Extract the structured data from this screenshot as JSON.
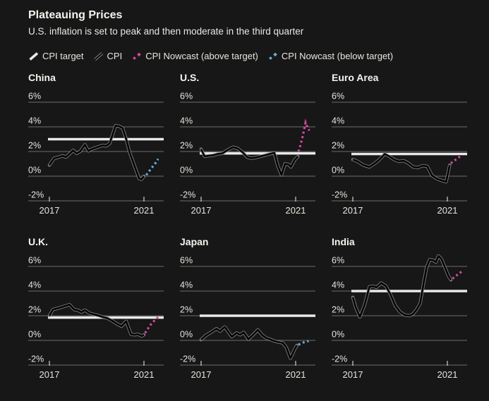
{
  "header": {
    "title": "Plateauing Prices",
    "subtitle": "U.S. inflation is set to peak and then moderate in the third quarter"
  },
  "legend": {
    "items": [
      {
        "icon": "cpi-target-line-icon",
        "label": "CPI target"
      },
      {
        "icon": "cpi-line-icon",
        "label": "CPI"
      },
      {
        "icon": "nowcast-above-icon",
        "label": "CPI Nowcast (above target)"
      },
      {
        "icon": "nowcast-below-icon",
        "label": "CPI Nowcast (below target)"
      }
    ]
  },
  "colors": {
    "background": "#171717",
    "title_text": "#f5f3ee",
    "axis_text": "#e7e4dd",
    "gridline": "#6e6e6e",
    "tick": "#cfcfcf",
    "target_line": "#e9e9e9",
    "cpi_core": "#000000",
    "cpi_halo": "#8f8f8f",
    "nowcast_above": "#d34a9d",
    "nowcast_below": "#63b0d8"
  },
  "chart_data": {
    "type": "line",
    "title": "Plateauing Prices",
    "subtitle": "U.S. inflation is set to peak and then moderate in the third quarter",
    "grid": "horizontal-only",
    "legend_position": "top",
    "y_axis": {
      "tick_labels": [
        "6%",
        "4%",
        "2%",
        "0%",
        "-2%"
      ],
      "tick_values": [
        6,
        4,
        2,
        0,
        -2
      ],
      "units": "percent",
      "range": [
        -2.8,
        7.4
      ]
    },
    "x_axis": {
      "tick_labels": [
        "2017",
        "2021"
      ],
      "tick_values": [
        2017,
        2021
      ],
      "range": [
        2016.1,
        2021.8
      ]
    },
    "charts": [
      {
        "title": "China",
        "target": 3.0,
        "nowcast_direction": "below",
        "cpi": [
          [
            2017.0,
            0.9
          ],
          [
            2017.2,
            1.45
          ],
          [
            2017.4,
            1.55
          ],
          [
            2017.55,
            1.65
          ],
          [
            2017.7,
            1.55
          ],
          [
            2017.85,
            1.8
          ],
          [
            2018.0,
            2.1
          ],
          [
            2018.15,
            1.85
          ],
          [
            2018.3,
            2.0
          ],
          [
            2018.5,
            2.55
          ],
          [
            2018.65,
            2.05
          ],
          [
            2018.8,
            2.2
          ],
          [
            2018.95,
            2.3
          ],
          [
            2019.1,
            2.4
          ],
          [
            2019.25,
            2.5
          ],
          [
            2019.4,
            2.45
          ],
          [
            2019.55,
            2.65
          ],
          [
            2019.8,
            4.1
          ],
          [
            2019.95,
            4.05
          ],
          [
            2020.1,
            3.9
          ],
          [
            2020.25,
            3.0
          ],
          [
            2020.4,
            1.9
          ],
          [
            2020.55,
            1.1
          ],
          [
            2020.7,
            0.3
          ],
          [
            2020.8,
            -0.2
          ],
          [
            2020.9,
            -0.25
          ],
          [
            2021.0,
            0.0
          ]
        ],
        "nowcast": [
          [
            2021.1,
            0.1
          ],
          [
            2021.2,
            0.35
          ],
          [
            2021.3,
            0.6
          ],
          [
            2021.4,
            0.85
          ],
          [
            2021.5,
            1.1
          ],
          [
            2021.6,
            1.4
          ]
        ]
      },
      {
        "title": "U.S.",
        "target": 1.85,
        "nowcast_direction": "above",
        "cpi": [
          [
            2017.0,
            2.2
          ],
          [
            2017.15,
            1.6
          ],
          [
            2017.3,
            1.65
          ],
          [
            2017.5,
            1.7
          ],
          [
            2017.7,
            1.8
          ],
          [
            2017.9,
            1.85
          ],
          [
            2018.1,
            2.1
          ],
          [
            2018.35,
            2.35
          ],
          [
            2018.55,
            2.25
          ],
          [
            2018.75,
            1.95
          ],
          [
            2018.95,
            1.55
          ],
          [
            2019.1,
            1.45
          ],
          [
            2019.3,
            1.5
          ],
          [
            2019.5,
            1.6
          ],
          [
            2019.7,
            1.7
          ],
          [
            2019.9,
            1.8
          ],
          [
            2020.1,
            1.9
          ],
          [
            2020.25,
            0.8
          ],
          [
            2020.4,
            0.1
          ],
          [
            2020.55,
            1.0
          ],
          [
            2020.7,
            0.95
          ],
          [
            2020.8,
            0.75
          ],
          [
            2020.95,
            1.3
          ],
          [
            2021.1,
            1.6
          ]
        ],
        "nowcast": [
          [
            2021.12,
            2.0
          ],
          [
            2021.2,
            2.5
          ],
          [
            2021.28,
            3.1
          ],
          [
            2021.35,
            3.7
          ],
          [
            2021.42,
            4.35
          ],
          [
            2021.5,
            3.95
          ],
          [
            2021.58,
            3.7
          ]
        ]
      },
      {
        "title": "Euro Area",
        "target": 1.8,
        "nowcast_direction": "above",
        "cpi": [
          [
            2017.0,
            1.35
          ],
          [
            2017.2,
            1.2
          ],
          [
            2017.45,
            0.9
          ],
          [
            2017.7,
            0.75
          ],
          [
            2017.9,
            1.0
          ],
          [
            2018.1,
            1.3
          ],
          [
            2018.35,
            1.8
          ],
          [
            2018.55,
            1.6
          ],
          [
            2018.75,
            1.35
          ],
          [
            2018.95,
            1.2
          ],
          [
            2019.15,
            1.25
          ],
          [
            2019.35,
            1.05
          ],
          [
            2019.55,
            0.75
          ],
          [
            2019.75,
            0.7
          ],
          [
            2019.95,
            0.85
          ],
          [
            2020.15,
            0.8
          ],
          [
            2020.35,
            0.05
          ],
          [
            2020.55,
            -0.2
          ],
          [
            2020.75,
            -0.35
          ],
          [
            2020.95,
            -0.45
          ],
          [
            2021.1,
            0.9
          ]
        ],
        "nowcast": [
          [
            2021.15,
            1.05
          ],
          [
            2021.25,
            1.2
          ],
          [
            2021.4,
            1.4
          ],
          [
            2021.5,
            1.55
          ],
          [
            2021.6,
            1.7
          ]
        ]
      },
      {
        "title": "U.K.",
        "target": 1.85,
        "nowcast_direction": "above",
        "cpi": [
          [
            2017.0,
            2.0
          ],
          [
            2017.15,
            2.5
          ],
          [
            2017.35,
            2.6
          ],
          [
            2017.6,
            2.75
          ],
          [
            2017.85,
            2.9
          ],
          [
            2018.05,
            2.5
          ],
          [
            2018.2,
            2.45
          ],
          [
            2018.35,
            2.3
          ],
          [
            2018.5,
            2.45
          ],
          [
            2018.7,
            2.2
          ],
          [
            2018.9,
            2.1
          ],
          [
            2019.1,
            2.0
          ],
          [
            2019.25,
            1.9
          ],
          [
            2019.45,
            1.8
          ],
          [
            2019.65,
            1.6
          ],
          [
            2019.85,
            1.35
          ],
          [
            2020.05,
            1.15
          ],
          [
            2020.25,
            1.55
          ],
          [
            2020.45,
            0.5
          ],
          [
            2020.6,
            0.45
          ],
          [
            2020.75,
            0.5
          ],
          [
            2020.9,
            0.35
          ],
          [
            2021.0,
            0.45
          ]
        ],
        "nowcast": [
          [
            2021.05,
            0.6
          ],
          [
            2021.15,
            0.9
          ],
          [
            2021.25,
            1.2
          ],
          [
            2021.38,
            1.5
          ],
          [
            2021.5,
            1.7
          ],
          [
            2021.6,
            1.9
          ]
        ]
      },
      {
        "title": "Japan",
        "target": 2.0,
        "nowcast_direction": "below",
        "cpi": [
          [
            2017.0,
            0.05
          ],
          [
            2017.2,
            0.4
          ],
          [
            2017.45,
            0.7
          ],
          [
            2017.65,
            0.95
          ],
          [
            2017.8,
            0.75
          ],
          [
            2018.0,
            1.1
          ],
          [
            2018.15,
            0.7
          ],
          [
            2018.3,
            0.3
          ],
          [
            2018.5,
            0.6
          ],
          [
            2018.65,
            0.45
          ],
          [
            2018.8,
            0.65
          ],
          [
            2019.0,
            0.1
          ],
          [
            2019.2,
            0.45
          ],
          [
            2019.4,
            0.85
          ],
          [
            2019.6,
            0.4
          ],
          [
            2019.75,
            0.2
          ],
          [
            2019.9,
            0.1
          ],
          [
            2020.1,
            -0.05
          ],
          [
            2020.3,
            -0.15
          ],
          [
            2020.45,
            -0.2
          ],
          [
            2020.6,
            -0.55
          ],
          [
            2020.78,
            -1.45
          ],
          [
            2020.95,
            -0.75
          ],
          [
            2021.05,
            -0.4
          ]
        ],
        "nowcast": [
          [
            2021.12,
            -0.35
          ],
          [
            2021.25,
            -0.22
          ],
          [
            2021.4,
            -0.12
          ],
          [
            2021.55,
            -0.05
          ]
        ]
      },
      {
        "title": "India",
        "target": 4.0,
        "nowcast_direction": "above",
        "cpi": [
          [
            2017.0,
            3.5
          ],
          [
            2017.12,
            2.7
          ],
          [
            2017.3,
            1.9
          ],
          [
            2017.5,
            2.9
          ],
          [
            2017.7,
            4.35
          ],
          [
            2017.85,
            4.4
          ],
          [
            2018.0,
            4.3
          ],
          [
            2018.2,
            4.65
          ],
          [
            2018.4,
            4.4
          ],
          [
            2018.6,
            3.7
          ],
          [
            2018.8,
            2.8
          ],
          [
            2019.0,
            2.3
          ],
          [
            2019.2,
            2.05
          ],
          [
            2019.4,
            2.0
          ],
          [
            2019.55,
            2.15
          ],
          [
            2019.7,
            2.5
          ],
          [
            2019.85,
            3.0
          ],
          [
            2020.0,
            4.7
          ],
          [
            2020.12,
            5.9
          ],
          [
            2020.25,
            6.55
          ],
          [
            2020.4,
            6.5
          ],
          [
            2020.52,
            6.35
          ],
          [
            2020.62,
            6.85
          ],
          [
            2020.75,
            6.6
          ],
          [
            2020.9,
            5.9
          ],
          [
            2021.05,
            5.2
          ],
          [
            2021.15,
            4.9
          ]
        ],
        "nowcast": [
          [
            2021.22,
            5.0
          ],
          [
            2021.33,
            5.2
          ],
          [
            2021.45,
            5.35
          ],
          [
            2021.55,
            5.5
          ],
          [
            2021.62,
            5.65
          ]
        ]
      }
    ]
  }
}
